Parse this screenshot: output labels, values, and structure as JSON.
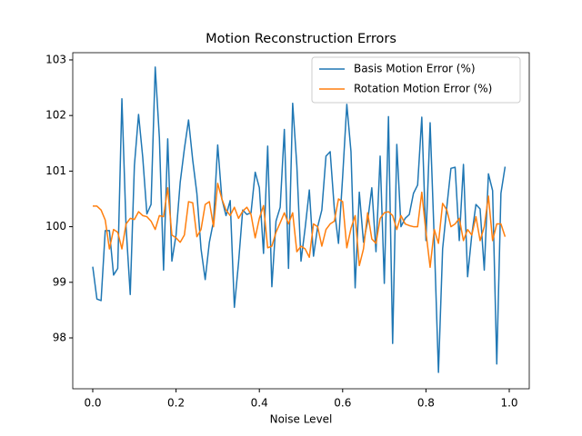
{
  "chart_data": {
    "type": "line",
    "title": "Motion Reconstruction Errors",
    "xlabel": "Noise Level",
    "x": [
      0.0,
      0.01,
      0.02,
      0.03,
      0.04,
      0.05,
      0.06,
      0.07,
      0.08,
      0.09,
      0.1,
      0.11,
      0.12,
      0.13,
      0.14,
      0.15,
      0.16,
      0.17,
      0.18,
      0.19,
      0.2,
      0.21,
      0.22,
      0.23,
      0.24,
      0.25,
      0.26,
      0.27,
      0.28,
      0.29,
      0.3,
      0.31,
      0.32,
      0.33,
      0.34,
      0.35,
      0.36,
      0.37,
      0.38,
      0.39,
      0.4,
      0.41,
      0.42,
      0.43,
      0.44,
      0.45,
      0.46,
      0.47,
      0.48,
      0.49,
      0.5,
      0.51,
      0.52,
      0.53,
      0.54,
      0.55,
      0.56,
      0.57,
      0.58,
      0.59,
      0.6,
      0.61,
      0.62,
      0.63,
      0.64,
      0.65,
      0.66,
      0.67,
      0.68,
      0.69,
      0.7,
      0.71,
      0.72,
      0.73,
      0.74,
      0.75,
      0.76,
      0.77,
      0.78,
      0.79,
      0.8,
      0.81,
      0.82,
      0.83,
      0.84,
      0.85,
      0.86,
      0.87,
      0.88,
      0.89,
      0.9,
      0.91,
      0.92,
      0.93,
      0.94,
      0.95,
      0.96,
      0.97,
      0.98,
      0.99
    ],
    "series": [
      {
        "name": "Basis Motion Error (%)",
        "color": "#1f77b4",
        "values": [
          99.28,
          98.7,
          98.67,
          99.93,
          99.93,
          99.13,
          99.25,
          102.3,
          100.0,
          98.78,
          101.1,
          102.02,
          101.25,
          100.23,
          100.4,
          102.87,
          101.6,
          99.22,
          101.58,
          99.38,
          99.85,
          100.8,
          101.4,
          101.92,
          101.2,
          100.6,
          99.6,
          99.05,
          99.72,
          100.1,
          101.47,
          100.5,
          100.2,
          100.47,
          98.55,
          99.35,
          100.3,
          100.22,
          100.25,
          100.98,
          100.7,
          99.52,
          101.45,
          98.92,
          100.1,
          100.35,
          101.75,
          99.25,
          102.22,
          101.1,
          99.38,
          99.98,
          100.66,
          99.47,
          100.0,
          100.3,
          101.27,
          101.35,
          100.32,
          99.7,
          100.9,
          102.2,
          101.35,
          98.9,
          100.62,
          99.72,
          100.1,
          100.7,
          99.55,
          101.27,
          98.98,
          101.98,
          97.9,
          101.48,
          100.0,
          100.15,
          100.22,
          100.6,
          100.75,
          101.97,
          99.75,
          101.87,
          99.75,
          97.38,
          99.6,
          100.35,
          101.05,
          101.07,
          99.75,
          101.12,
          99.1,
          99.85,
          100.4,
          100.32,
          99.22,
          100.95,
          100.65,
          97.53,
          100.6,
          101.08
        ]
      },
      {
        "name": "Rotation Motion Error (%)",
        "color": "#ff7f0e",
        "values": [
          100.37,
          100.37,
          100.3,
          100.12,
          99.6,
          99.95,
          99.9,
          99.6,
          100.05,
          100.15,
          100.13,
          100.27,
          100.2,
          100.18,
          100.1,
          99.95,
          100.2,
          100.18,
          100.7,
          99.85,
          99.8,
          99.72,
          99.85,
          100.45,
          100.43,
          99.82,
          99.95,
          100.4,
          100.45,
          100.0,
          100.78,
          100.5,
          100.3,
          100.2,
          100.35,
          100.15,
          100.28,
          100.35,
          100.22,
          99.8,
          100.15,
          100.38,
          99.62,
          99.65,
          99.9,
          100.07,
          100.25,
          100.05,
          100.25,
          99.55,
          99.65,
          99.6,
          99.45,
          100.05,
          100.0,
          99.65,
          99.95,
          100.05,
          100.1,
          100.5,
          100.45,
          99.62,
          99.97,
          100.2,
          99.3,
          99.6,
          100.25,
          99.78,
          99.7,
          100.15,
          100.25,
          100.27,
          100.2,
          99.95,
          100.2,
          100.05,
          100.02,
          100.0,
          100.0,
          100.62,
          99.9,
          99.27,
          99.95,
          99.7,
          100.42,
          100.3,
          100.0,
          100.05,
          100.15,
          99.75,
          99.95,
          99.85,
          100.18,
          99.75,
          100.0,
          100.55,
          99.75,
          100.05,
          100.05,
          99.82
        ]
      }
    ],
    "xlim": [
      -0.048,
      1.048
    ],
    "ylim": [
      97.085,
      103.13
    ],
    "xticks": [
      {
        "value": 0,
        "label": "0.0"
      },
      0.2,
      0.4,
      0.6,
      0.8,
      {
        "value": 1,
        "label": "1.0"
      }
    ],
    "yticks": [
      98,
      99,
      100,
      101,
      102,
      103
    ],
    "legend": "upper right",
    "grid": false
  }
}
